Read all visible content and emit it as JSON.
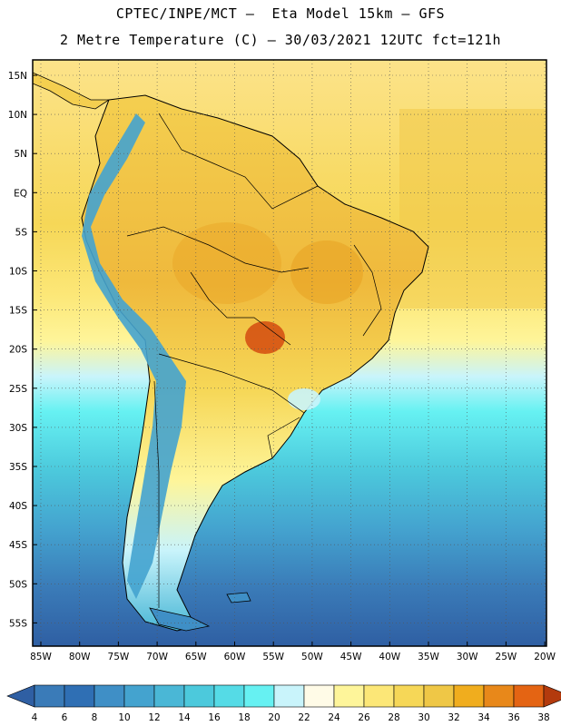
{
  "header": {
    "line1": "CPTEC/INPE/MCT –  Eta Model 15km – GFS",
    "line2": "2 Metre Temperature (C) – 30/03/2021 12UTC fct=121h"
  },
  "map": {
    "lat_labels": [
      "15N",
      "10N",
      "5N",
      "EQ",
      "5S",
      "10S",
      "15S",
      "20S",
      "25S",
      "30S",
      "35S",
      "40S",
      "45S",
      "50S",
      "55S"
    ],
    "lon_labels": [
      "85W",
      "80W",
      "75W",
      "70W",
      "65W",
      "60W",
      "55W",
      "50W",
      "45W",
      "40W",
      "35W",
      "30W",
      "25W",
      "20W"
    ]
  },
  "colorbar": {
    "ticks": [
      "4",
      "6",
      "8",
      "10",
      "12",
      "14",
      "16",
      "18",
      "20",
      "22",
      "24",
      "26",
      "28",
      "30",
      "32",
      "34",
      "36",
      "38"
    ],
    "colors": [
      "#3a7bb8",
      "#2f6fb4",
      "#3f8fc6",
      "#44a3cf",
      "#4ab7d6",
      "#4cc9dc",
      "#55dbe6",
      "#66f1f2",
      "#c9f4fb",
      "#fffbe7",
      "#fef59a",
      "#fce777",
      "#f6d757",
      "#efc746",
      "#f0ad1e",
      "#e8881a",
      "#e46413",
      "#d34b0f",
      "#b33a0d",
      "#2f5fa3"
    ]
  }
}
